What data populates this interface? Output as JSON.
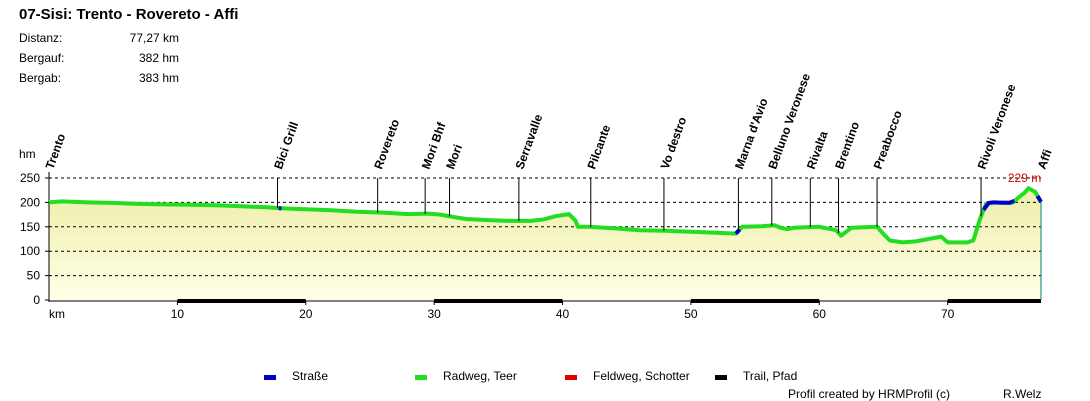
{
  "title": "07-Sisi: Trento - Rovereto - Affi",
  "stats": [
    {
      "label": "Distanz:",
      "value": "77,27 km"
    },
    {
      "label": "Bergauf:",
      "value": "382 hm"
    },
    {
      "label": "Bergab:",
      "value": "383 hm"
    }
  ],
  "legend": [
    {
      "label": "Straße",
      "color": "#0000cc"
    },
    {
      "label": "Radweg, Teer",
      "color": "#22dd22"
    },
    {
      "label": "Feldweg, Schotter",
      "color": "#dd0000"
    },
    {
      "label": "Trail, Pfad",
      "color": "#000000"
    }
  ],
  "credit": "Profil created by HRMProfil (c)",
  "author": "R.Welz",
  "chart_data": {
    "type": "area",
    "ylabel": "hm",
    "xlabel": "km",
    "ylim": [
      0,
      250
    ],
    "xlim": [
      0,
      77.27
    ],
    "yticks": [
      0,
      50,
      100,
      150,
      200,
      250
    ],
    "xticks": [
      10,
      20,
      30,
      40,
      50,
      60,
      70
    ],
    "grid": true,
    "max_label": "229 m",
    "max_point": {
      "x": 76.3,
      "y": 229
    },
    "fill_colors": {
      "top": "#eeeeaa",
      "bottom": "#ffffe8"
    },
    "profile": [
      [
        0,
        200
      ],
      [
        1,
        202
      ],
      [
        2,
        201
      ],
      [
        3,
        200
      ],
      [
        5,
        199
      ],
      [
        7,
        197
      ],
      [
        9,
        196
      ],
      [
        11,
        195
      ],
      [
        13,
        194
      ],
      [
        15,
        192
      ],
      [
        17,
        190
      ],
      [
        18,
        188
      ],
      [
        20,
        186
      ],
      [
        22,
        184
      ],
      [
        24,
        181
      ],
      [
        26,
        179
      ],
      [
        28,
        176
      ],
      [
        29.5,
        177
      ],
      [
        30.5,
        175
      ],
      [
        31.5,
        170
      ],
      [
        32.5,
        166
      ],
      [
        34,
        164
      ],
      [
        36,
        162
      ],
      [
        37.5,
        162
      ],
      [
        38.5,
        165
      ],
      [
        39.5,
        172
      ],
      [
        40.5,
        176
      ],
      [
        41,
        163
      ],
      [
        41.2,
        150
      ],
      [
        42,
        150
      ],
      [
        44,
        147
      ],
      [
        46,
        143
      ],
      [
        48,
        142
      ],
      [
        50,
        140
      ],
      [
        52,
        138
      ],
      [
        53.5,
        136
      ],
      [
        54,
        150
      ],
      [
        55.5,
        151
      ],
      [
        56.5,
        153
      ],
      [
        57,
        148
      ],
      [
        57.5,
        145
      ],
      [
        58,
        148
      ],
      [
        60,
        150
      ],
      [
        61.3,
        143
      ],
      [
        61.7,
        132
      ],
      [
        62.5,
        148
      ],
      [
        64.5,
        150
      ],
      [
        65,
        135
      ],
      [
        65.5,
        122
      ],
      [
        66.5,
        118
      ],
      [
        67.5,
        120
      ],
      [
        68.5,
        125
      ],
      [
        69.5,
        130
      ],
      [
        70,
        118
      ],
      [
        71.5,
        118
      ],
      [
        72,
        122
      ],
      [
        72.5,
        165
      ],
      [
        73,
        198
      ],
      [
        73.5,
        200
      ],
      [
        75,
        199
      ],
      [
        76,
        220
      ],
      [
        76.3,
        229
      ],
      [
        76.8,
        222
      ],
      [
        77.27,
        201
      ]
    ],
    "surface_segments": [
      {
        "type": "Straße",
        "from": 17.9,
        "to": 18.1
      },
      {
        "type": "Straße",
        "from": 53.5,
        "to": 53.8
      },
      {
        "type": "Straße",
        "from": 72.8,
        "to": 75.2
      },
      {
        "type": "Straße",
        "from": 77.0,
        "to": 77.27
      }
    ],
    "trail_segments": [
      [
        10,
        20
      ],
      [
        30,
        40
      ],
      [
        50,
        60
      ],
      [
        70,
        77.27
      ]
    ],
    "waypoints": [
      {
        "name": "Trento",
        "km": 0
      },
      {
        "name": "Bici Grill",
        "km": 17.8
      },
      {
        "name": "Rovereto",
        "km": 25.6
      },
      {
        "name": "Mori Bhf",
        "km": 29.3
      },
      {
        "name": "Mori",
        "km": 31.2
      },
      {
        "name": "Serravalle",
        "km": 36.6
      },
      {
        "name": "Pilcante",
        "km": 42.2
      },
      {
        "name": "Vo destro",
        "km": 47.9
      },
      {
        "name": "Marna d'Avio",
        "km": 53.7
      },
      {
        "name": "Belluno Veronese",
        "km": 56.3
      },
      {
        "name": "Rivalta",
        "km": 59.3
      },
      {
        "name": "Brentino",
        "km": 61.5
      },
      {
        "name": "Preabocco",
        "km": 64.5
      },
      {
        "name": "Rivoli Veronese",
        "km": 72.6
      },
      {
        "name": "Affi",
        "km": 77.27
      }
    ]
  }
}
